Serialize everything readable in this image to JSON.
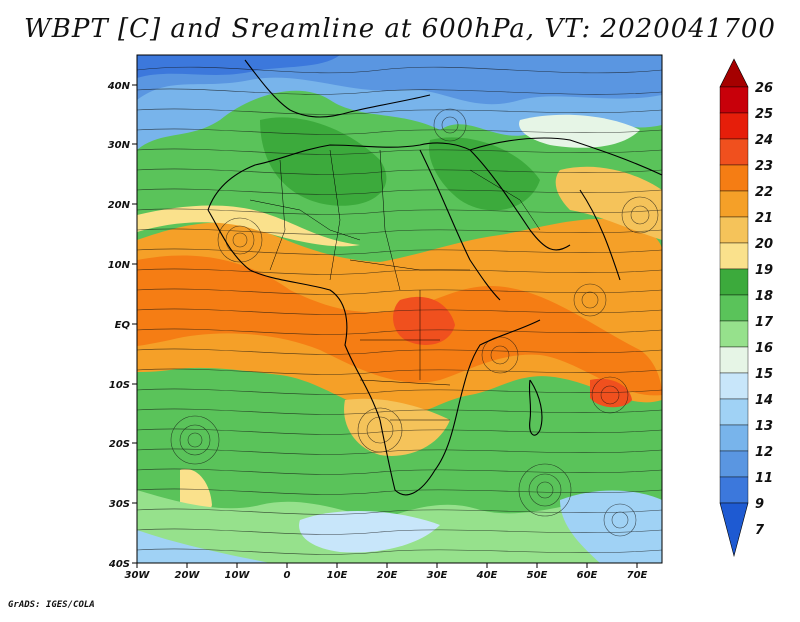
{
  "title": "WBPT [C] and Sreamline at 600hPa, VT: 2020041700",
  "credit": "GrADS: IGES/COLA",
  "map": {
    "lat_labels": [
      "40N",
      "30N",
      "20N",
      "10N",
      "EQ",
      "10S",
      "20S",
      "30S",
      "40S"
    ],
    "lat_values": [
      40,
      30,
      20,
      10,
      0,
      -10,
      -20,
      -30,
      -40
    ],
    "lon_labels": [
      "30W",
      "20W",
      "10W",
      "0",
      "10E",
      "20E",
      "30E",
      "40E",
      "50E",
      "60E",
      "70E"
    ],
    "lon_values": [
      -30,
      -20,
      -10,
      0,
      10,
      20,
      30,
      40,
      50,
      60,
      70
    ],
    "lon_range": [
      -30,
      77
    ],
    "lat_range": [
      -41,
      45
    ]
  },
  "colorbar": {
    "labels": [
      "26",
      "25",
      "24",
      "23",
      "22",
      "21",
      "20",
      "19",
      "18",
      "17",
      "16",
      "15",
      "14",
      "13",
      "12",
      "11",
      "9",
      "7"
    ],
    "colors": [
      "#a50000",
      "#c8000a",
      "#e61e0a",
      "#f0501e",
      "#f57d14",
      "#f5a028",
      "#f5c35a",
      "#fae18c",
      "#3caa3c",
      "#5ac35a",
      "#96e18c",
      "#e6f5e6",
      "#c8e6fa",
      "#a0d2f5",
      "#78b4eb",
      "#5a96e1",
      "#3c78dc",
      "#1e5ad2"
    ]
  }
}
